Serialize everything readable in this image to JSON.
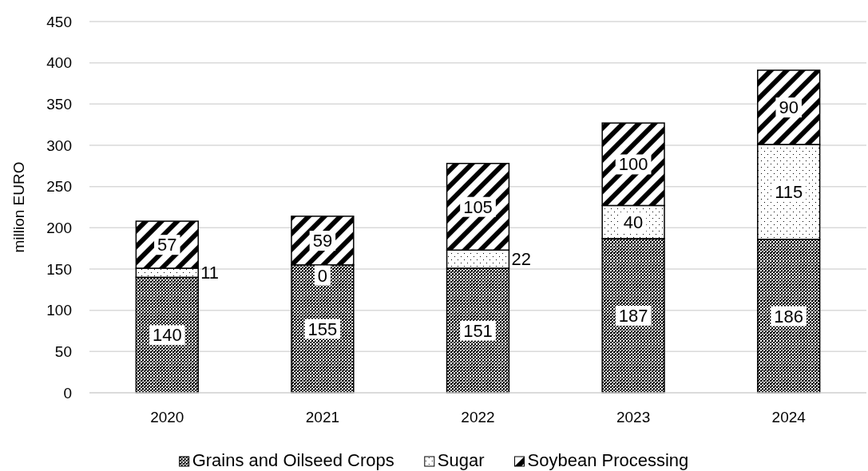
{
  "chart_data": {
    "type": "bar",
    "stacked": true,
    "ylabel": "million EURO",
    "categories": [
      "2020",
      "2021",
      "2022",
      "2023",
      "2024"
    ],
    "series": [
      {
        "name": "Grains and Oilseed Crops",
        "color": "#000000",
        "values": [
          140,
          155,
          151,
          187,
          186
        ]
      },
      {
        "name": "Sugar",
        "color": "#000000",
        "values": [
          11,
          0,
          22,
          40,
          115
        ]
      },
      {
        "name": "Soybean Processing",
        "color": "#000000",
        "values": [
          57,
          59,
          105,
          100,
          90
        ]
      }
    ],
    "ylim": [
      0,
      450
    ],
    "yticks": [
      0,
      50,
      100,
      150,
      200,
      250,
      300,
      350,
      400,
      450
    ],
    "grid": "y",
    "legend": "bottom",
    "data_labels": true
  }
}
